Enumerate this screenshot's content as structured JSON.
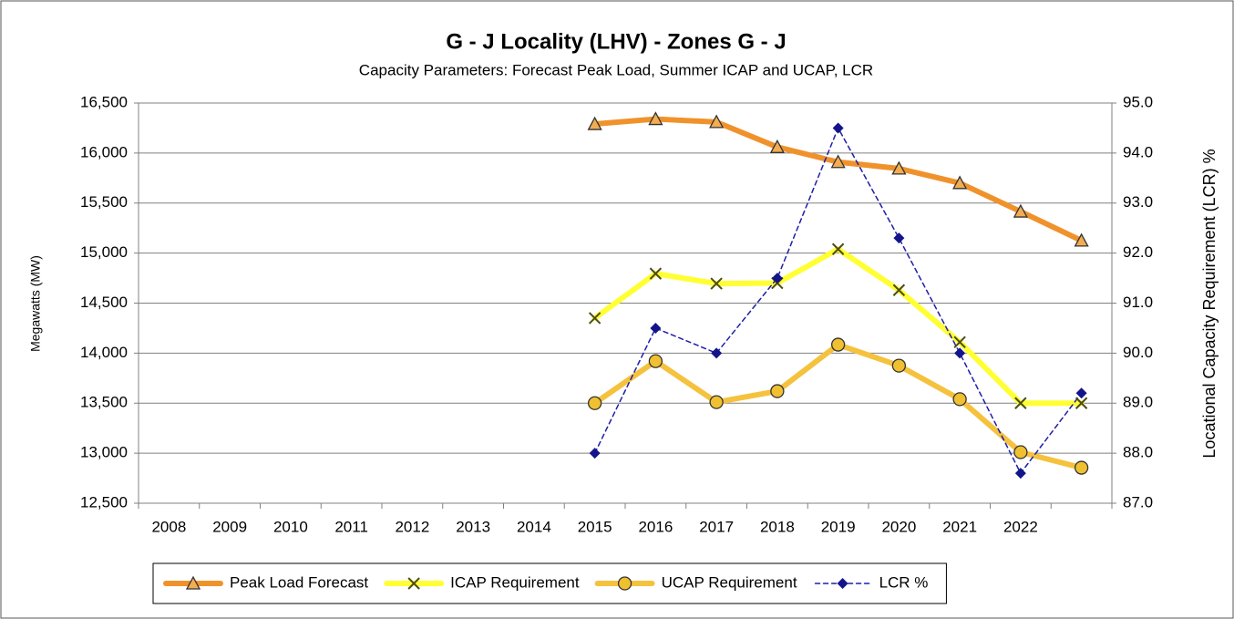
{
  "chart_data": {
    "type": "line",
    "title": "G - J Locality (LHV) - Zones G - J",
    "subtitle": "Capacity Parameters: Forecast Peak Load, Summer ICAP and UCAP, LCR",
    "y_label": "Megawatts  (MW)",
    "y2_label": "Locational Capacity Requirement (LCR) %",
    "categories": [
      "2008",
      "2009",
      "2010",
      "2011",
      "2012",
      "2013",
      "2014",
      "2015",
      "2016",
      "2017",
      "2018",
      "2019",
      "2020",
      "2021",
      "2022",
      null
    ],
    "series": [
      {
        "name": "Peak Load Forecast",
        "color": "#f0922b",
        "marker": "triangle",
        "marker_fill": "#f2ad52",
        "line_style": "solid",
        "values": [
          null,
          null,
          null,
          null,
          null,
          null,
          null,
          16290,
          16340,
          16310,
          16060,
          15910,
          15845,
          15700,
          15415,
          15125
        ]
      },
      {
        "name": "ICAP Requirement",
        "color": "#ffff33",
        "marker": "x",
        "marker_fill": "#4d4d10",
        "line_style": "solid",
        "values": [
          null,
          null,
          null,
          null,
          null,
          null,
          null,
          14350,
          14795,
          14695,
          14700,
          15040,
          14630,
          14110,
          13500,
          13500
        ]
      },
      {
        "name": "UCAP Requirement",
        "color": "#f5c23e",
        "marker": "circle",
        "marker_fill": "#f0c030",
        "line_style": "solid",
        "values": [
          null,
          null,
          null,
          null,
          null,
          null,
          null,
          13500,
          13920,
          13510,
          13620,
          14085,
          13875,
          13540,
          13010,
          12855
        ]
      },
      {
        "name": "LCR %",
        "color": "#1e1ea8",
        "marker": "diamond",
        "marker_fill": "#14148a",
        "line_style": "dashed",
        "axis": "y2",
        "values": [
          null,
          null,
          null,
          null,
          null,
          null,
          null,
          88.0,
          90.5,
          90.0,
          91.5,
          94.5,
          92.3,
          90.0,
          87.6,
          89.2
        ]
      }
    ],
    "ylim": [
      12500,
      16500
    ],
    "yticks": [
      {
        "value": 12500,
        "label": "12,500"
      },
      {
        "value": 13000,
        "label": "13,000"
      },
      {
        "value": 13500,
        "label": "13,500"
      },
      {
        "value": 14000,
        "label": "14,000"
      },
      {
        "value": 14500,
        "label": "14,500"
      },
      {
        "value": 15000,
        "label": "15,000"
      },
      {
        "value": 15500,
        "label": "15,500"
      },
      {
        "value": 16000,
        "label": "16,000"
      },
      {
        "value": 16500,
        "label": "16,500"
      }
    ],
    "y2lim": [
      87,
      95
    ],
    "y2ticks": [
      {
        "value": 87,
        "label": "87.0"
      },
      {
        "value": 88,
        "label": "88.0"
      },
      {
        "value": 89,
        "label": "89.0"
      },
      {
        "value": 90,
        "label": "90.0"
      },
      {
        "value": 91,
        "label": "91.0"
      },
      {
        "value": 92,
        "label": "92.0"
      },
      {
        "value": 93,
        "label": "93.0"
      },
      {
        "value": 94,
        "label": "94.0"
      },
      {
        "value": 95,
        "label": "95.0"
      }
    ],
    "grid": true,
    "legend": "bottom"
  }
}
